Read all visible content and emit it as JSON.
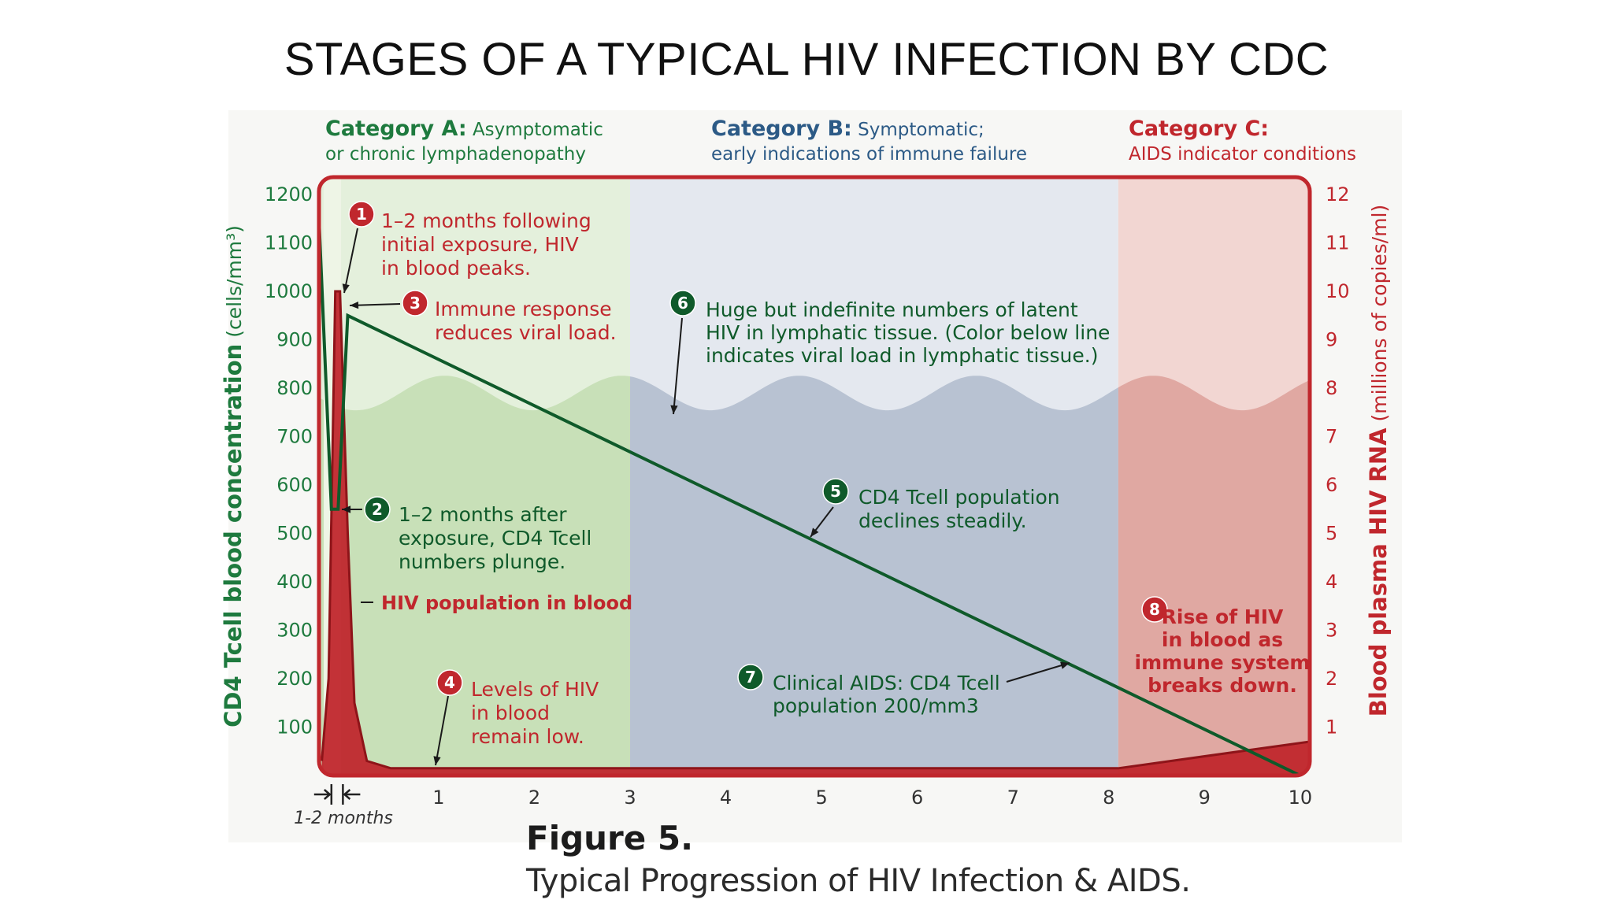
{
  "slide": {
    "title": "STAGES OF A TYPICAL HIV INFECTION BY CDC"
  },
  "figure": {
    "caption": "Figure 5.",
    "subcaption": "Typical Progression of HIV Infection & AIDS."
  },
  "colors": {
    "green": "#1e7a3e",
    "green_dark": "#0f5a2a",
    "blue_heading": "#2c5a86",
    "red": "#c0272d",
    "band_a": "#e4f0dc",
    "band_a_lower": "#c8e0b8",
    "band_b": "#e4e8ef",
    "band_b_lower": "#b8c2d2",
    "band_c": "#f2d6d2",
    "band_c_lower": "#e0a8a2"
  },
  "chart_data": {
    "type": "line",
    "title": "",
    "categories": [
      {
        "name": "Category A:",
        "description_line1": "Asymptomatic",
        "description_line2": "or chronic lymphadenopathy",
        "x_range": [
          0,
          3
        ]
      },
      {
        "name": "Category B:",
        "description_line1": "Symptomatic;",
        "description_line2": "early indications of immune failure",
        "x_range": [
          3,
          8.1
        ]
      },
      {
        "name": "Category C:",
        "description_line1": "",
        "description_line2": "AIDS indicator conditions",
        "x_range": [
          8.1,
          10.1
        ]
      }
    ],
    "xlabel": "1-2 months",
    "x_ticks": [
      "1",
      "2",
      "3",
      "4",
      "5",
      "6",
      "7",
      "8",
      "9",
      "10"
    ],
    "xlim": [
      -0.25,
      10.1
    ],
    "y_left": {
      "label_bold": "CD4 Tcell blood concentration",
      "label_unit": "(cells/mm³)",
      "ticks": [
        "1200",
        "1100",
        "1000",
        "900",
        "800",
        "700",
        "600",
        "500",
        "400",
        "300",
        "200",
        "100"
      ],
      "ylim": [
        0,
        1200
      ]
    },
    "y_right": {
      "label_bold": "Blood plasma HIV RNA",
      "label_unit": "(millions of copies/ml)",
      "ticks": [
        "12",
        "11",
        "10",
        "9",
        "8",
        "7",
        "6",
        "5",
        "4",
        "3",
        "2",
        "1"
      ],
      "ylim": [
        0,
        12
      ]
    },
    "series": [
      {
        "name": "CD4 Tcell population",
        "axis": "left",
        "x": [
          -0.25,
          -0.12,
          -0.05,
          0.05,
          10.0
        ],
        "y": [
          1150,
          550,
          550,
          950,
          0
        ]
      },
      {
        "name": "HIV population in blood",
        "axis": "right",
        "x": [
          -0.22,
          -0.15,
          -0.08,
          -0.03,
          0.05,
          0.12,
          0.25,
          0.5,
          8.1,
          10.1
        ],
        "y": [
          0.3,
          2.0,
          10.0,
          10.0,
          5.0,
          1.5,
          0.3,
          0.15,
          0.15,
          0.7
        ]
      }
    ],
    "lymph_tissue_level": 7.9,
    "lymph_tissue_note": "Color below line indicates viral load in lymphatic tissue.",
    "annotations": [
      {
        "number": "1",
        "color": "red",
        "lines": [
          "1–2 months following",
          "initial exposure, HIV",
          "in blood peaks."
        ]
      },
      {
        "number": "2",
        "color": "green",
        "lines": [
          "1–2 months after",
          "exposure, CD4 Tcell",
          "numbers plunge."
        ]
      },
      {
        "number": "3",
        "color": "red",
        "lines": [
          "Immune response",
          "reduces viral load."
        ]
      },
      {
        "number": "4",
        "color": "red",
        "lines": [
          "Levels of HIV",
          "in blood",
          "remain low."
        ]
      },
      {
        "number": "5",
        "color": "green",
        "lines": [
          "CD4 Tcell population",
          "declines steadily."
        ]
      },
      {
        "number": "6",
        "color": "green",
        "lines": [
          "Huge but indefinite numbers of latent",
          "HIV in lymphatic tissue. (Color below line",
          "indicates viral load in lymphatic tissue.)"
        ]
      },
      {
        "number": "7",
        "color": "green",
        "lines": [
          "Clinical AIDS: CD4 Tcell",
          "population 200/mm3"
        ]
      },
      {
        "number": "8",
        "color": "red",
        "lines": [
          "Rise of HIV",
          "in blood as",
          "immune system",
          "breaks down."
        ]
      }
    ],
    "series_label": "HIV population in blood"
  }
}
